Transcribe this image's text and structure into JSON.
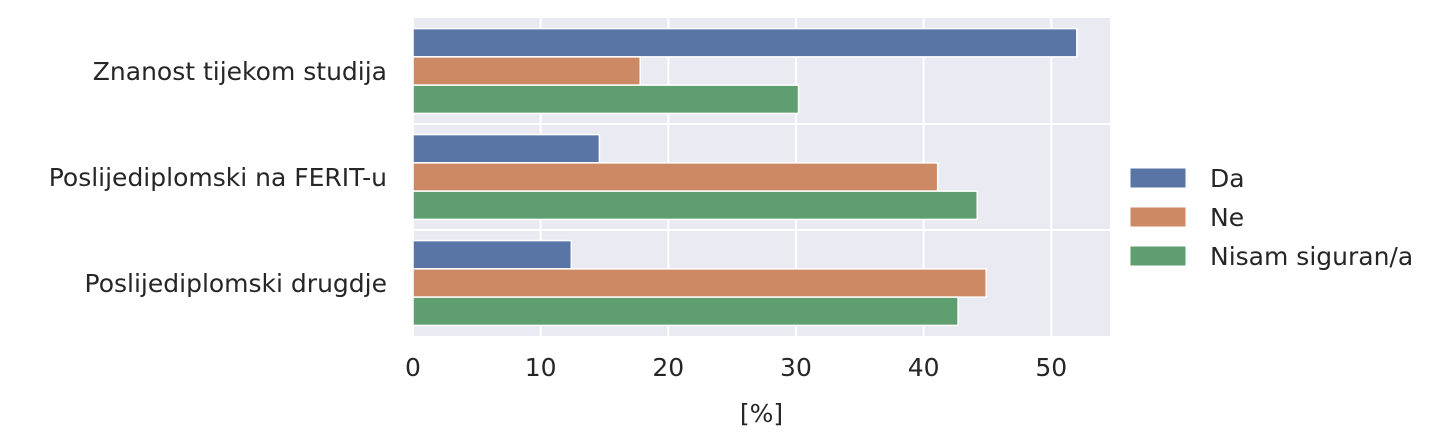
{
  "chart_data": {
    "type": "bar",
    "orientation": "horizontal",
    "categories": [
      "Znanost tijekom studija",
      "Poslijediplomski na FERIT-u",
      "Poslijediplomski drugdje"
    ],
    "series": [
      {
        "name": "Da",
        "color": "#5875a6",
        "values": [
          52.0,
          14.6,
          12.4
        ]
      },
      {
        "name": "Ne",
        "color": "#cc8963",
        "values": [
          17.8,
          41.1,
          44.9
        ]
      },
      {
        "name": "Nisam siguran/a",
        "color": "#5f9e6e",
        "values": [
          30.2,
          44.2,
          42.7
        ]
      }
    ],
    "xlabel": "[%]",
    "ylabel": "",
    "xlim": [
      0,
      54.6
    ],
    "xticks": [
      0,
      10,
      20,
      30,
      40,
      50
    ],
    "grid": true,
    "legend_position": "right"
  }
}
